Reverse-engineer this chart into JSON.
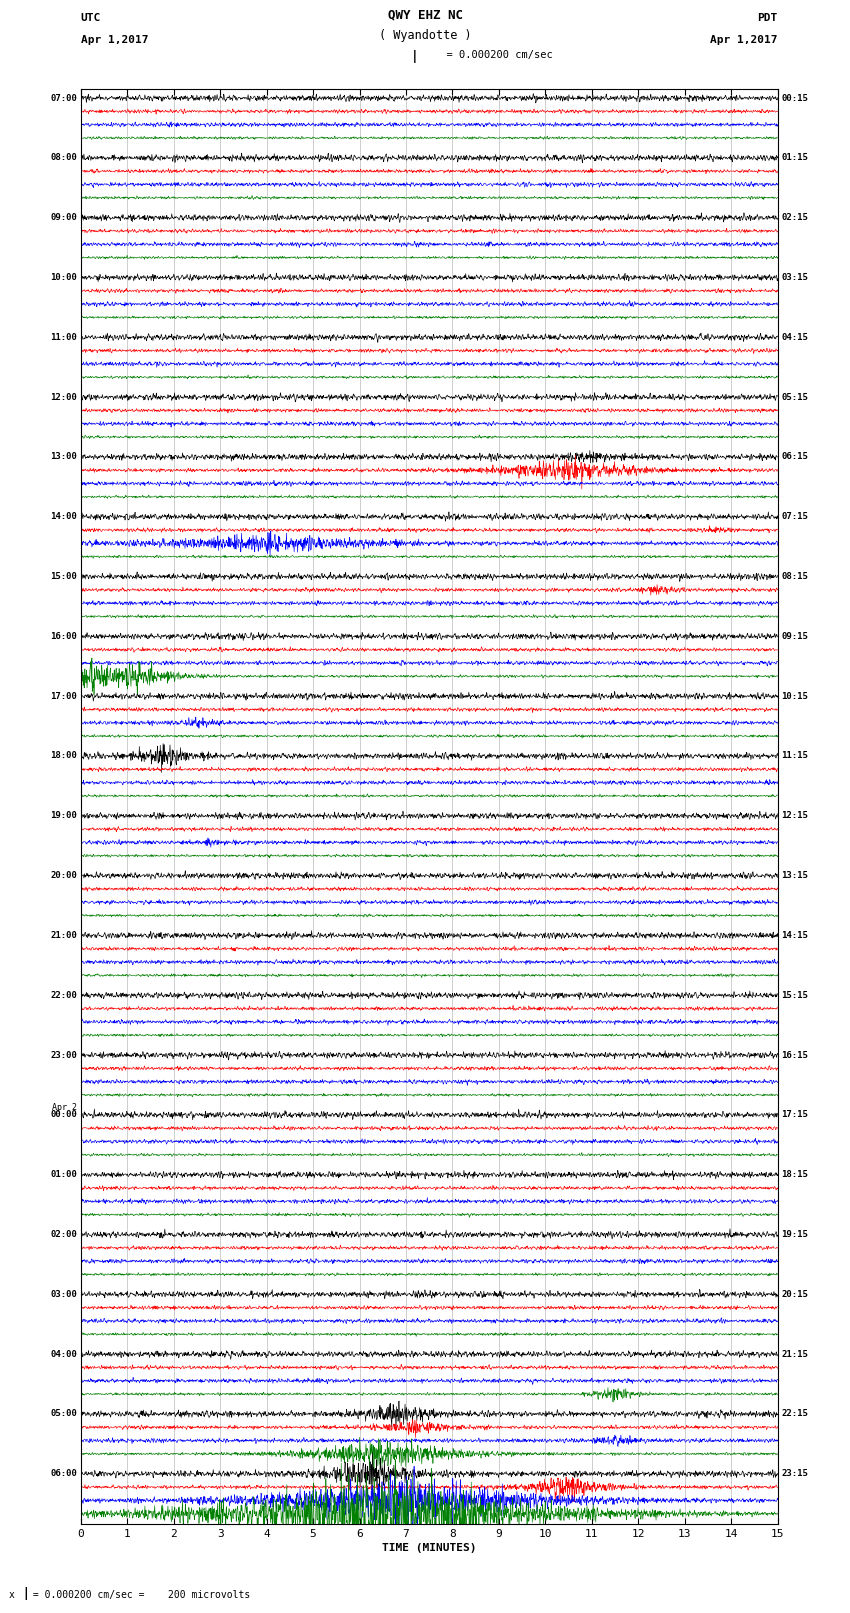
{
  "title_line1": "QWY EHZ NC",
  "title_line2": "( Wyandotte )",
  "scale_label": "  = 0.000200 cm/sec",
  "left_label_top": "UTC",
  "left_label_date": "Apr 1,2017",
  "right_label_top": "PDT",
  "right_label_date": "Apr 1,2017",
  "bottom_label": "TIME (MINUTES)",
  "bottom_note": "x  = 0.000200 cm/sec =    200 microvolts",
  "x_min": 0,
  "x_max": 15,
  "x_ticks": [
    0,
    1,
    2,
    3,
    4,
    5,
    6,
    7,
    8,
    9,
    10,
    11,
    12,
    13,
    14,
    15
  ],
  "background_color": "#ffffff",
  "trace_colors": [
    "black",
    "red",
    "blue",
    "green"
  ],
  "utc_times": [
    "07:00",
    "08:00",
    "09:00",
    "10:00",
    "11:00",
    "12:00",
    "13:00",
    "14:00",
    "15:00",
    "16:00",
    "17:00",
    "18:00",
    "19:00",
    "20:00",
    "21:00",
    "22:00",
    "23:00",
    "00:00",
    "01:00",
    "02:00",
    "03:00",
    "04:00",
    "05:00",
    "06:00"
  ],
  "utc_special": [
    17
  ],
  "pdt_times": [
    "00:15",
    "01:15",
    "02:15",
    "03:15",
    "04:15",
    "05:15",
    "06:15",
    "07:15",
    "08:15",
    "09:15",
    "10:15",
    "11:15",
    "12:15",
    "13:15",
    "14:15",
    "15:15",
    "16:15",
    "17:15",
    "18:15",
    "19:15",
    "20:15",
    "21:15",
    "22:15",
    "23:15"
  ],
  "n_rows": 24,
  "traces_per_row": 4,
  "figwidth": 8.5,
  "figheight": 16.13,
  "dpi": 100,
  "noise_base": 0.18,
  "events": {
    "6_1": [
      10.5,
      1.2,
      1.5
    ],
    "6_0": [
      11.0,
      0.5,
      0.8
    ],
    "7_2": [
      4.0,
      0.8,
      3.0
    ],
    "7_1": [
      13.5,
      0.3,
      0.5
    ],
    "8_1": [
      12.5,
      0.4,
      0.6
    ],
    "9_3": [
      0.3,
      1.5,
      1.0
    ],
    "9_3b": [
      1.2,
      1.2,
      0.8
    ],
    "10_2": [
      2.5,
      0.5,
      0.5
    ],
    "11_0": [
      1.8,
      1.2,
      0.6
    ],
    "12_2": [
      2.8,
      0.4,
      0.5
    ],
    "21_3": [
      11.5,
      0.8,
      0.5
    ],
    "22_3": [
      6.5,
      1.5,
      1.5
    ],
    "22_0": [
      6.8,
      1.0,
      0.8
    ],
    "22_2": [
      11.5,
      0.6,
      0.5
    ],
    "22_1": [
      7.2,
      0.8,
      0.8
    ],
    "23_3": [
      6.5,
      4.0,
      3.0
    ],
    "23_2": [
      7.0,
      2.5,
      2.5
    ],
    "23_0": [
      6.2,
      1.5,
      1.0
    ],
    "23_1": [
      10.5,
      1.0,
      1.0
    ]
  }
}
